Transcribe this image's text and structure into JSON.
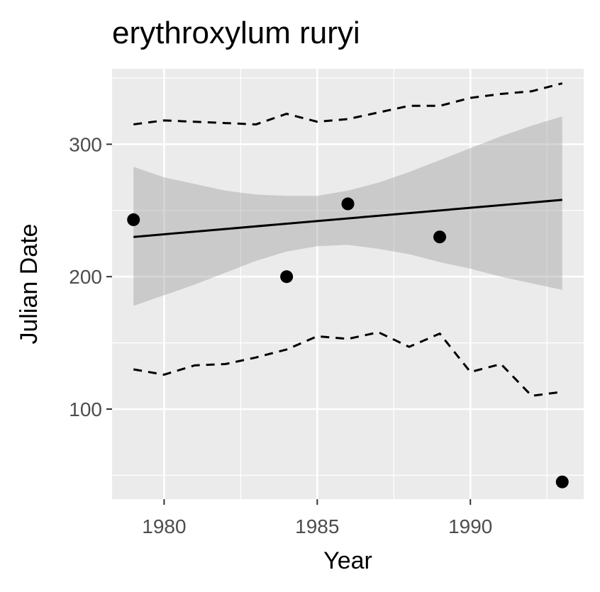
{
  "chart_data": {
    "type": "scatter",
    "title": "erythroxylum ruryi",
    "xlabel": "Year",
    "ylabel": "Julian Date",
    "xlim": [
      1978.3,
      1993.7
    ],
    "ylim": [
      32,
      357
    ],
    "x_ticks": [
      1980,
      1985,
      1990
    ],
    "y_ticks": [
      100,
      200,
      300
    ],
    "grid": true,
    "points": [
      {
        "x": 1979,
        "y": 243
      },
      {
        "x": 1984,
        "y": 200
      },
      {
        "x": 1986,
        "y": 255
      },
      {
        "x": 1989,
        "y": 230
      },
      {
        "x": 1993,
        "y": 45
      }
    ],
    "fit_line": {
      "x": [
        1979,
        1993
      ],
      "y": [
        230,
        258
      ]
    },
    "confidence_band": {
      "x": [
        1979,
        1980,
        1981,
        1982,
        1983,
        1984,
        1985,
        1986,
        1987,
        1988,
        1989,
        1990,
        1991,
        1992,
        1993
      ],
      "upper": [
        283,
        275,
        270,
        265,
        262,
        261,
        261,
        265,
        271,
        279,
        288,
        297,
        306,
        314,
        321
      ],
      "lower": [
        178,
        186,
        194,
        203,
        212,
        219,
        223,
        224,
        221,
        217,
        211,
        206,
        200,
        195,
        190
      ]
    },
    "upper_dashed": {
      "x": [
        1979,
        1980,
        1981,
        1982,
        1983,
        1984,
        1985,
        1986,
        1987,
        1988,
        1989,
        1990,
        1991,
        1992,
        1993
      ],
      "y": [
        315,
        318,
        317,
        316,
        315,
        323,
        317,
        319,
        324,
        329,
        329,
        335,
        338,
        340,
        346
      ]
    },
    "lower_dashed": {
      "x": [
        1979,
        1980,
        1981,
        1982,
        1983,
        1984,
        1985,
        1986,
        1987,
        1988,
        1989,
        1990,
        1991,
        1992,
        1993
      ],
      "y": [
        130,
        126,
        133,
        134,
        139,
        145,
        155,
        153,
        158,
        147,
        157,
        128,
        134,
        110,
        113
      ]
    },
    "colors": {
      "panel": "#ebebeb",
      "grid": "#ffffff",
      "points": "#000000",
      "band": "#999999",
      "line": "#000000",
      "ticks": "#4d4d4d"
    }
  }
}
